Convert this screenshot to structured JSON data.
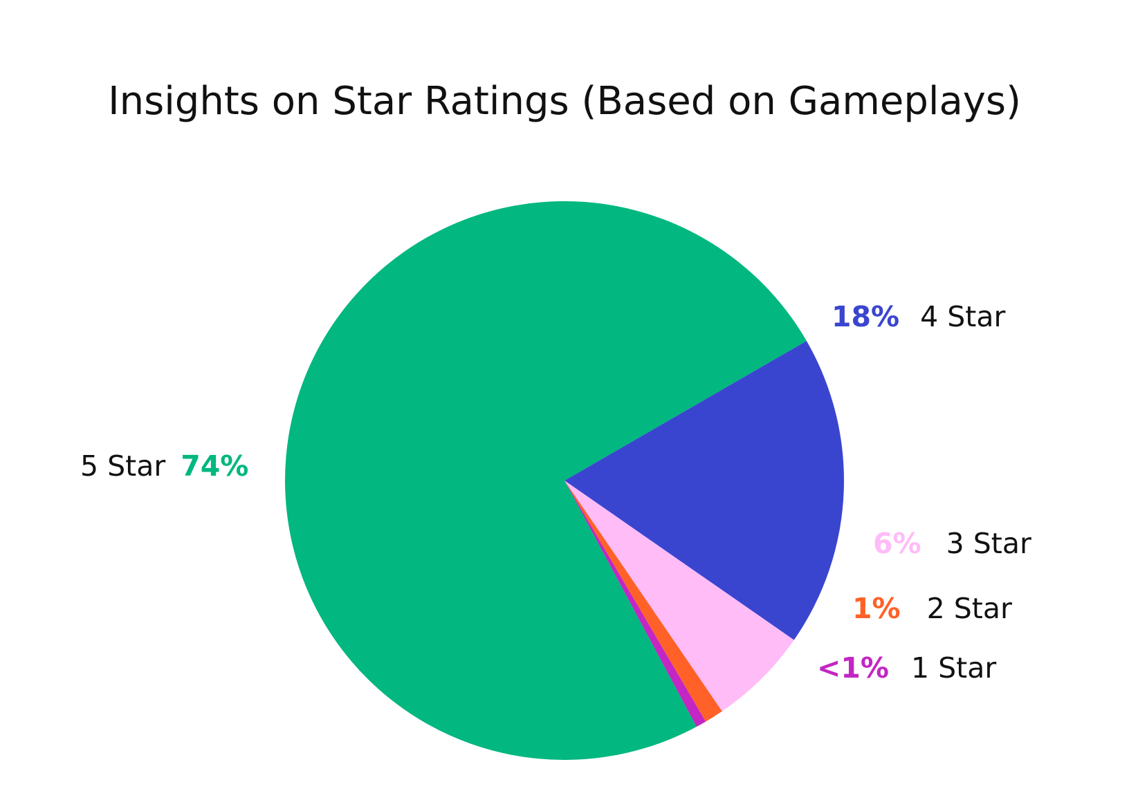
{
  "chart_data": {
    "type": "pie",
    "title": "Insights on Star Ratings (Based on Gameplays)",
    "legend": "none",
    "slices": [
      {
        "label": "5 Star",
        "value_label": "74%",
        "value": 74.5,
        "color": "#02b780"
      },
      {
        "label": "4 Star",
        "value_label": "18%",
        "value": 18,
        "color": "#3a45cf"
      },
      {
        "label": "3 Star",
        "value_label": "6%",
        "value": 5.8,
        "color": "#ffbcf7"
      },
      {
        "label": "2 Star",
        "value_label": "1%",
        "value": 1.1,
        "color": "#ff6128"
      },
      {
        "label": "1 Star",
        "value_label": "<1%",
        "value": 0.6,
        "color": "#c326c3"
      }
    ]
  }
}
